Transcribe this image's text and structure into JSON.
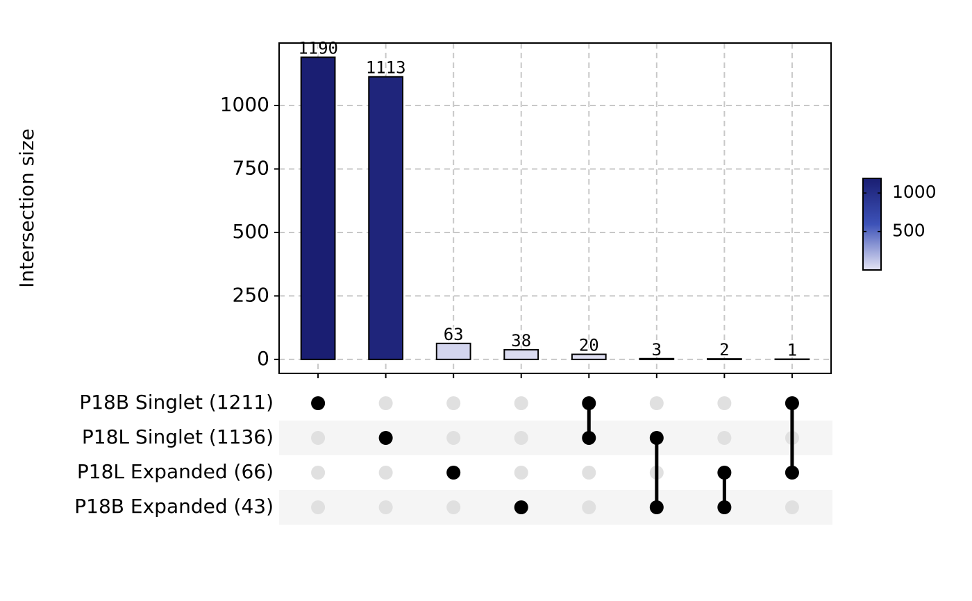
{
  "chart_data": {
    "type": "upset",
    "y_label": "Intersection size",
    "values": [
      1190,
      1113,
      63,
      38,
      20,
      3,
      2,
      1
    ],
    "ylim": [
      -55,
      1246
    ],
    "yticks": [
      0,
      250,
      500,
      750,
      1000
    ],
    "grid": true,
    "sets": [
      "P18B Singlet (1211)",
      "P18L Singlet (1136)",
      "P18L Expanded (66)",
      "P18B Expanded (43)"
    ],
    "membership": [
      [
        true,
        false,
        false,
        false,
        true,
        false,
        false,
        true
      ],
      [
        false,
        true,
        false,
        false,
        true,
        true,
        false,
        false
      ],
      [
        false,
        false,
        true,
        false,
        false,
        false,
        true,
        true
      ],
      [
        false,
        false,
        false,
        true,
        false,
        true,
        true,
        false
      ]
    ],
    "colorbar": {
      "lim": [
        1,
        1190
      ],
      "ticks": [
        500,
        1000
      ],
      "colors": [
        "#e4e4f4",
        "#3d52b8",
        "#1a1e72"
      ]
    }
  }
}
